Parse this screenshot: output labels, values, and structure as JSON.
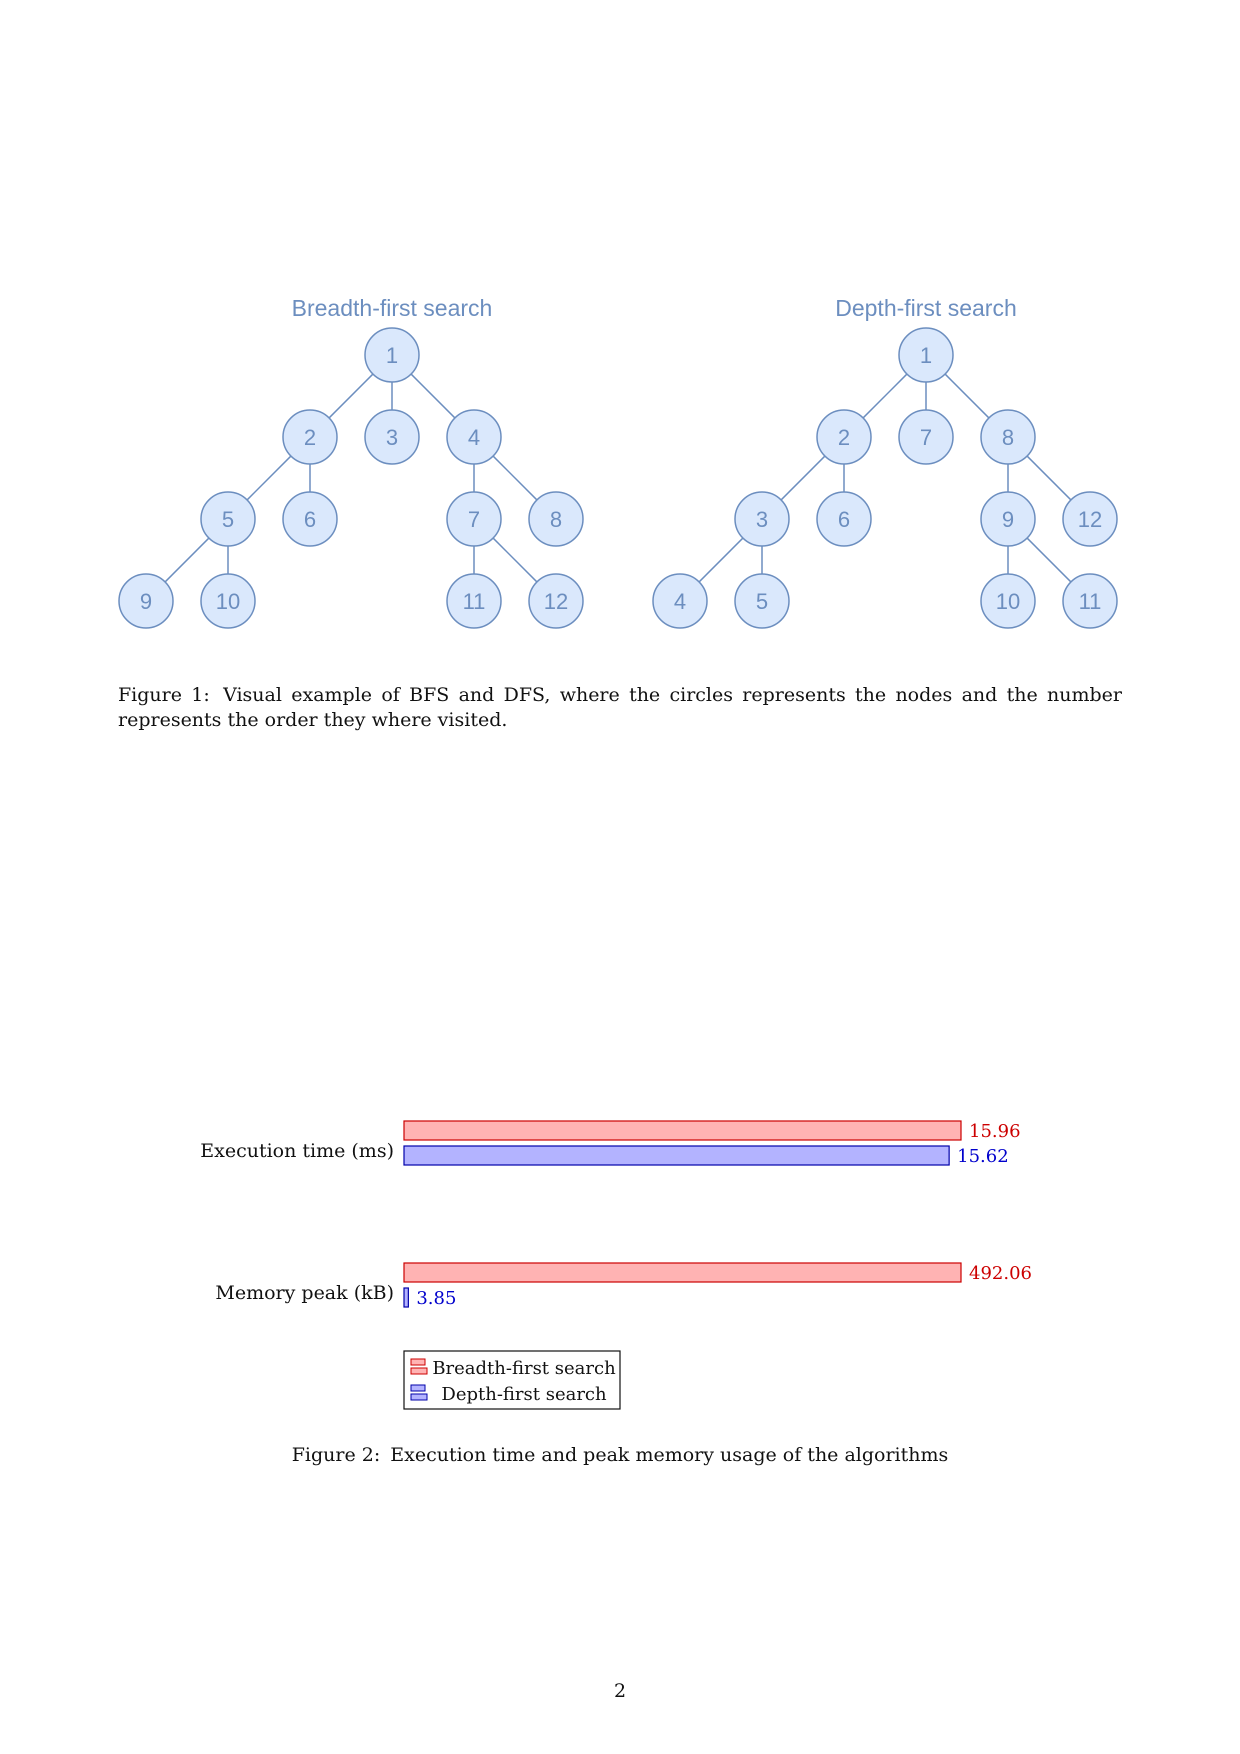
{
  "figure1": {
    "bfs": {
      "title": "Breadth-first search",
      "nodes": [
        "1",
        "2",
        "3",
        "4",
        "5",
        "6",
        "7",
        "8",
        "9",
        "10",
        "11",
        "12"
      ]
    },
    "dfs": {
      "title": "Depth-first search",
      "nodes": [
        "1",
        "2",
        "7",
        "8",
        "3",
        "6",
        "9",
        "12",
        "4",
        "5",
        "10",
        "11"
      ]
    },
    "colors": {
      "node_fill": "#dae8fc",
      "node_stroke": "#6c8ebf",
      "text": "#6c8ebf"
    },
    "caption_label": "Figure 1:",
    "caption_text": "Visual example of BFS and DFS, where the circles represents the nodes and the number represents the order they where visited."
  },
  "figure2": {
    "caption_label": "Figure 2:",
    "caption_text": "Execution time and peak memory usage of the algorithms"
  },
  "chart_data": {
    "type": "bar",
    "orientation": "horizontal",
    "categories": [
      "Execution time (ms)",
      "Memory peak (kB)"
    ],
    "series": [
      {
        "name": "Breadth-first search",
        "values": [
          15.96,
          492.06
        ],
        "labels": [
          "15.96",
          "492.06"
        ],
        "fill": "#ffb3b3",
        "stroke": "#cc0000",
        "label_color": "#cc0000"
      },
      {
        "name": "Depth-first search",
        "values": [
          15.62,
          3.85
        ],
        "labels": [
          "15.62",
          "3.85"
        ],
        "fill": "#b3b3ff",
        "stroke": "#0000aa",
        "label_color": "#0000cc"
      }
    ],
    "normalization": "per-category max",
    "legend_placement": "bottom"
  },
  "page_number": "2"
}
